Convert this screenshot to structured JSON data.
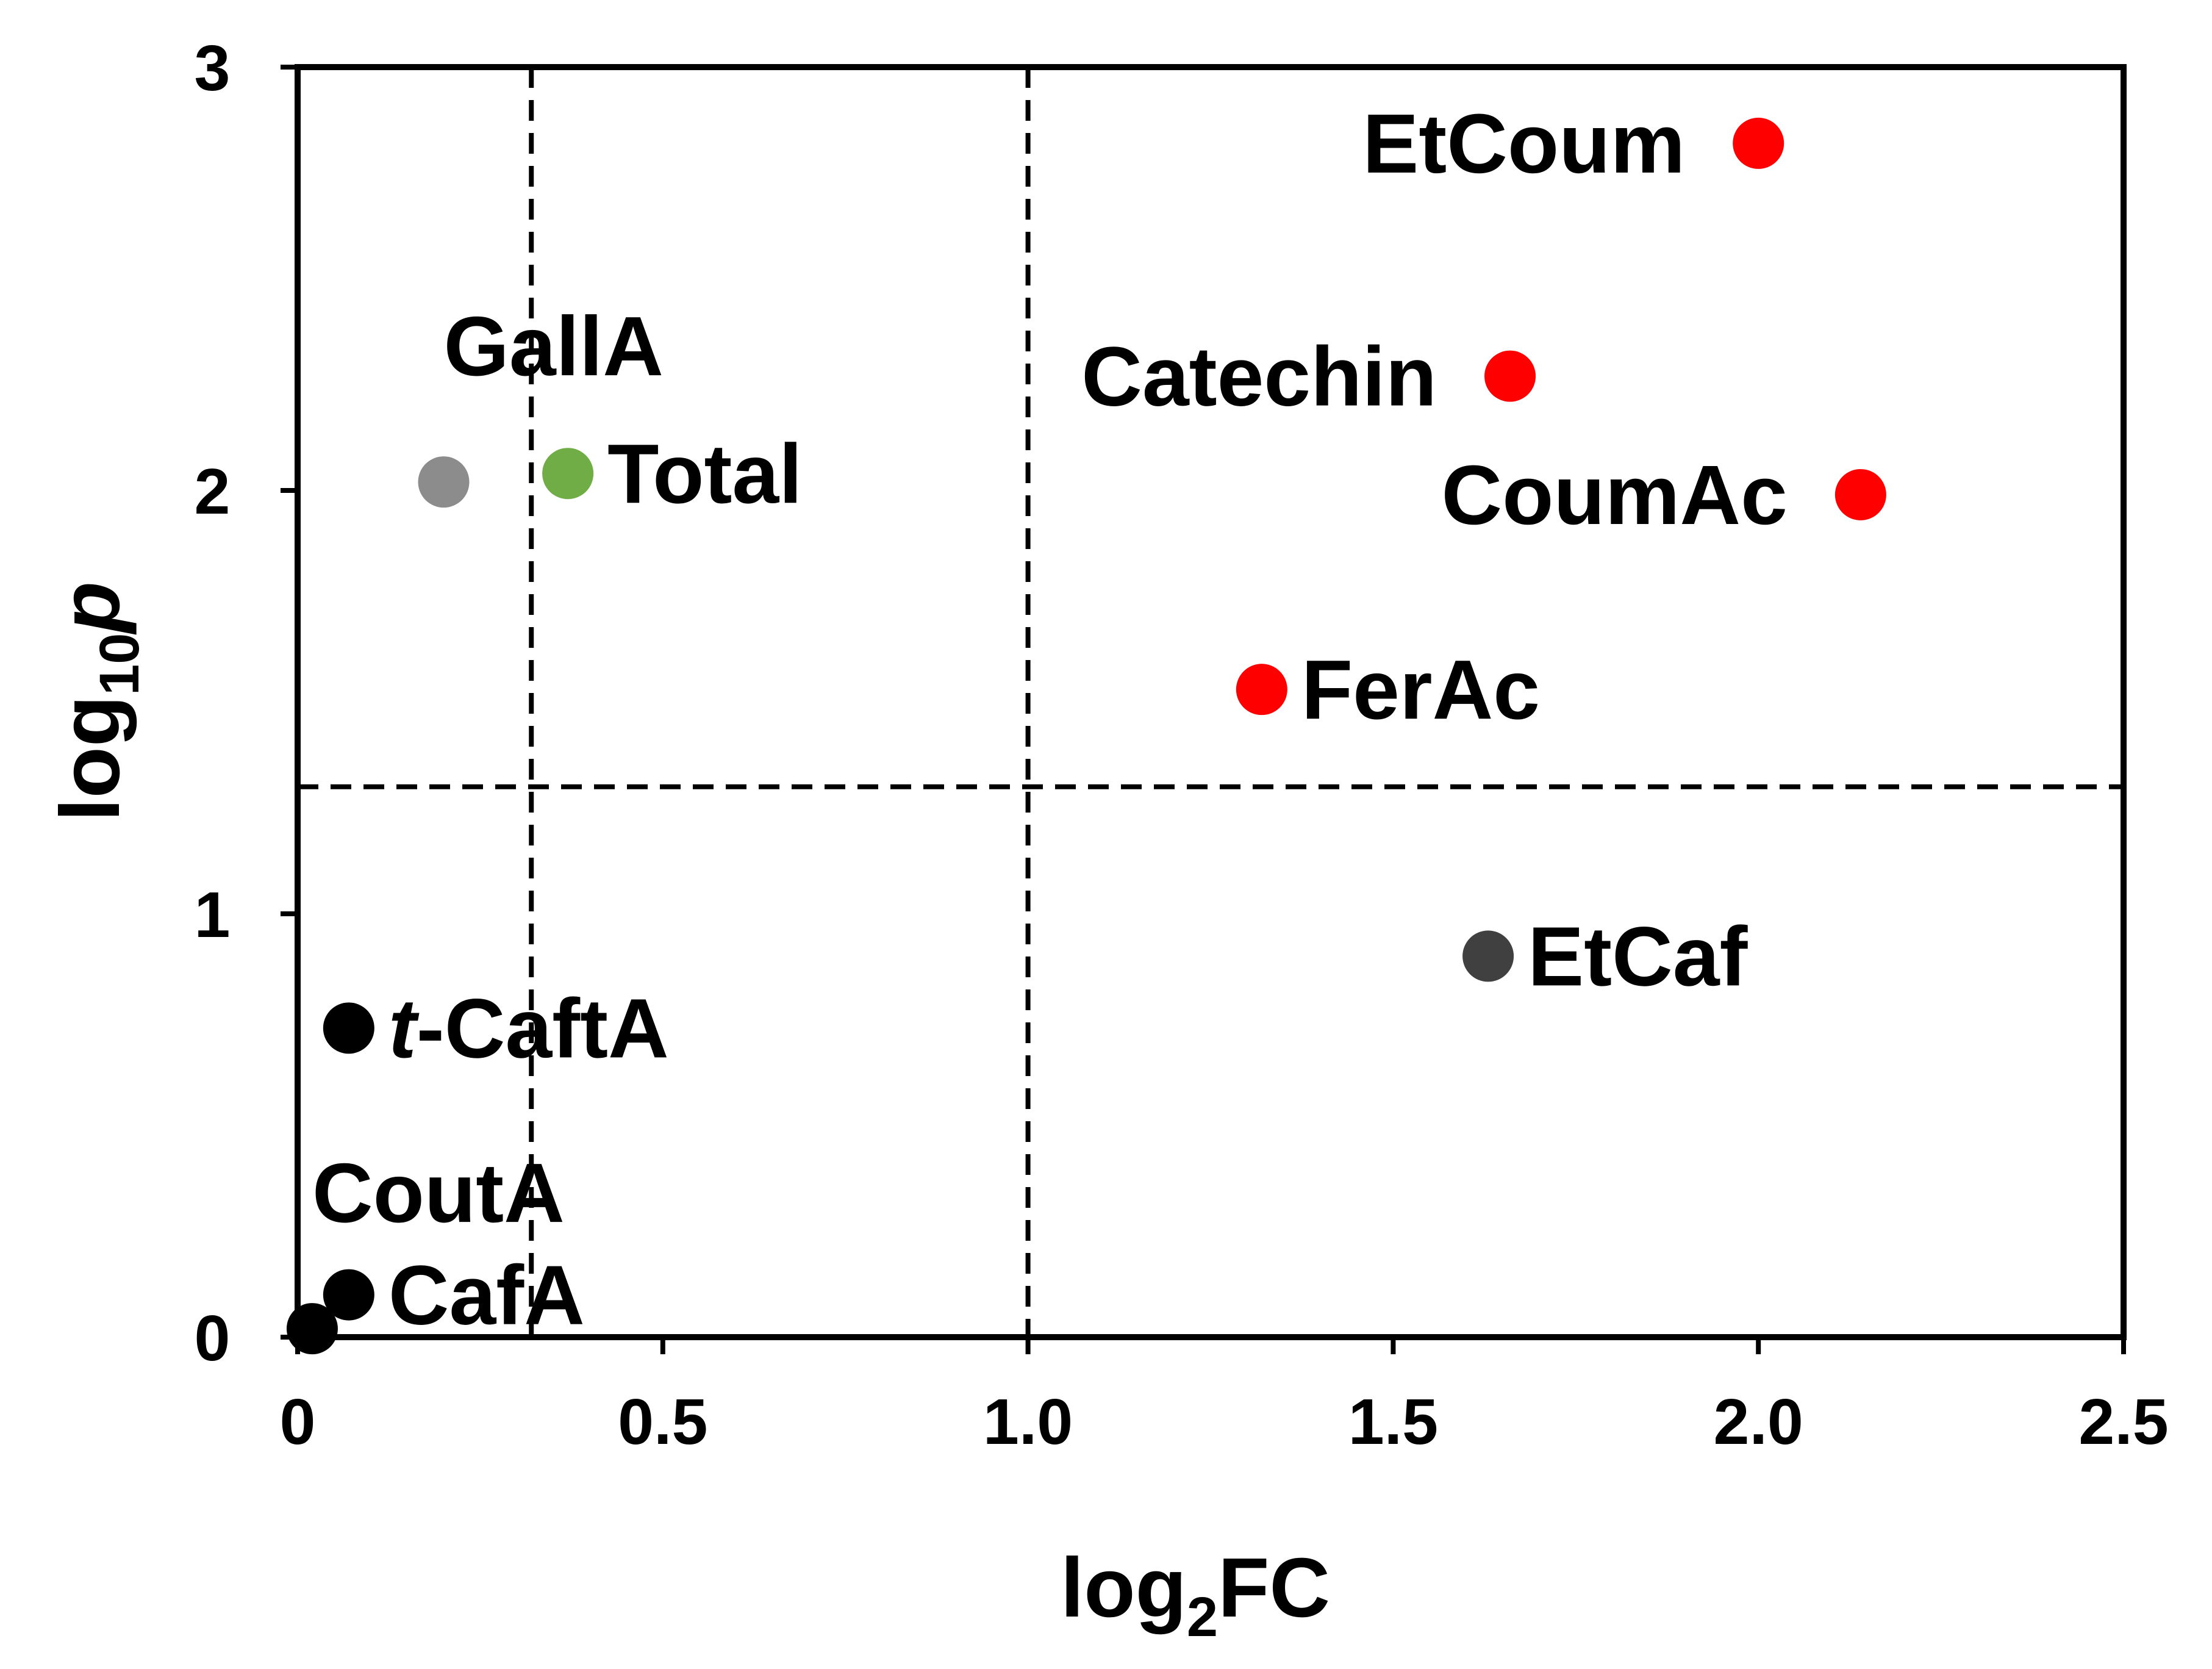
{
  "chart_data": {
    "type": "scatter",
    "xlabel_main": "log",
    "xlabel_sub": "2",
    "xlabel_tail": "FC",
    "ylabel_main": "log",
    "ylabel_sub": "10",
    "ylabel_tail": "p",
    "xlim": [
      0,
      2.5
    ],
    "ylim": [
      0,
      3
    ],
    "xticks": [
      {
        "value": 0,
        "label": "0"
      },
      {
        "value": 0.5,
        "label": "0.5"
      },
      {
        "value": 1.0,
        "label": "1.0"
      },
      {
        "value": 1.5,
        "label": "1.5"
      },
      {
        "value": 2.0,
        "label": "2.0"
      },
      {
        "value": 2.5,
        "label": "2.5"
      }
    ],
    "yticks": [
      {
        "value": 0,
        "label": "0"
      },
      {
        "value": 1,
        "label": "1"
      },
      {
        "value": 2,
        "label": "2"
      },
      {
        "value": 3,
        "label": "3"
      }
    ],
    "grid": false,
    "threshold_lines": [
      {
        "axis": "x",
        "value": 0.32
      },
      {
        "axis": "x",
        "value": 1.0
      },
      {
        "axis": "y",
        "value": 1.3
      }
    ],
    "points": [
      {
        "name": "EtCoum",
        "x": 2.0,
        "y": 2.82,
        "color": "#ff0000",
        "label_pos": "left"
      },
      {
        "name": "Catechin",
        "x": 1.66,
        "y": 2.27,
        "color": "#ff0000",
        "label_pos": "left"
      },
      {
        "name": "CoumAc",
        "x": 2.14,
        "y": 1.99,
        "color": "#ff0000",
        "label_pos": "left"
      },
      {
        "name": "FerAc",
        "x": 1.32,
        "y": 1.53,
        "color": "#ff0000",
        "label_pos": "right"
      },
      {
        "name": "GallA",
        "x": 0.2,
        "y": 2.02,
        "color": "#8c8c8c",
        "label_pos": "above"
      },
      {
        "name": "Total",
        "x": 0.37,
        "y": 2.04,
        "color": "#70ad47",
        "label_pos": "right"
      },
      {
        "name": "EtCaf",
        "x": 1.63,
        "y": 0.9,
        "color": "#404040",
        "label_pos": "right"
      },
      {
        "name": "t-CaftA",
        "prefix": "t",
        "suffix": "-CaftA",
        "x": 0.07,
        "y": 0.73,
        "color": "#000000",
        "label_pos": "right"
      },
      {
        "name": "CafA",
        "x": 0.07,
        "y": 0.1,
        "color": "#000000",
        "label_pos": "right"
      },
      {
        "name": "CoutA",
        "x": 0.02,
        "y": 0.02,
        "color": "#000000",
        "label_pos": "above"
      }
    ]
  }
}
